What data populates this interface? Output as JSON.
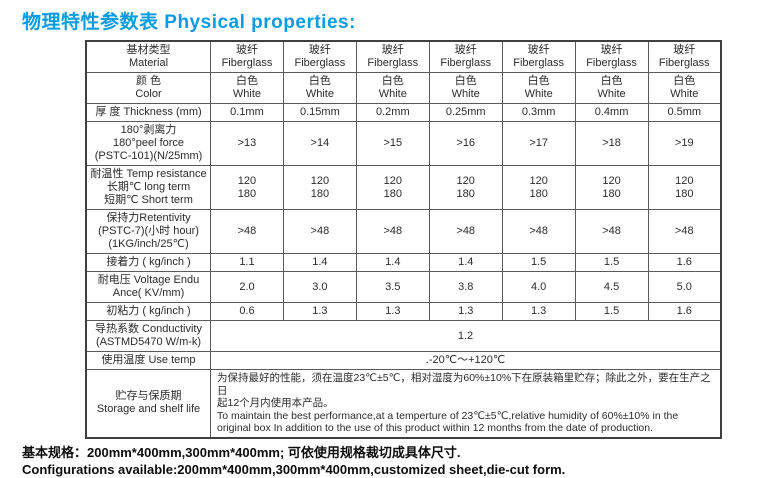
{
  "title": "物理特性参数表 Physical properties:",
  "table": {
    "columns": 7,
    "rows": [
      {
        "id": "material",
        "label": [
          "基材类型",
          "Material"
        ],
        "cells": [
          [
            "玻纤",
            "Fiberglass"
          ],
          [
            "玻纤",
            "Fiberglass"
          ],
          [
            "玻纤",
            "Fiberglass"
          ],
          [
            "玻纤",
            "Fiberglass"
          ],
          [
            "玻纤",
            "Fiberglass"
          ],
          [
            "玻纤",
            "Fiberglass"
          ],
          [
            "玻纤",
            "Fiberglass"
          ]
        ]
      },
      {
        "id": "color",
        "label": [
          "颜 色",
          "Color"
        ],
        "cells": [
          [
            "白色",
            "White"
          ],
          [
            "白色",
            "White"
          ],
          [
            "白色",
            "White"
          ],
          [
            "白色",
            "White"
          ],
          [
            "白色",
            "White"
          ],
          [
            "白色",
            "White"
          ],
          [
            "白色",
            "White"
          ]
        ]
      },
      {
        "id": "thickness",
        "label": [
          "厚 度  Thickness (mm)"
        ],
        "cells": [
          [
            "0.1mm"
          ],
          [
            "0.15mm"
          ],
          [
            "0.2mm"
          ],
          [
            "0.25mm"
          ],
          [
            "0.3mm"
          ],
          [
            "0.4mm"
          ],
          [
            "0.5mm"
          ]
        ]
      },
      {
        "id": "peel-force",
        "label": [
          "180°剥离力",
          "180°peel force",
          "(PSTC-101)(N/25mm)"
        ],
        "cells": [
          [
            ">13"
          ],
          [
            ">14"
          ],
          [
            ">15"
          ],
          [
            ">16"
          ],
          [
            ">17"
          ],
          [
            ">18"
          ],
          [
            ">19"
          ]
        ]
      },
      {
        "id": "temp-resistance",
        "label": [
          "耐温性 Temp resistance",
          "长期℃ long term",
          "短期℃ Short term"
        ],
        "cells": [
          [
            "120",
            "180"
          ],
          [
            "120",
            "180"
          ],
          [
            "120",
            "180"
          ],
          [
            "120",
            "180"
          ],
          [
            "120",
            "180"
          ],
          [
            "120",
            "180"
          ],
          [
            "120",
            "180"
          ]
        ]
      },
      {
        "id": "retentivity",
        "label": [
          "保持力Retentivity",
          "(PSTC-7)(小时 hour)",
          "(1KG/inch/25℃)"
        ],
        "cells": [
          [
            ">48"
          ],
          [
            ">48"
          ],
          [
            ">48"
          ],
          [
            ">48"
          ],
          [
            ">48"
          ],
          [
            ">48"
          ],
          [
            ">48"
          ]
        ]
      },
      {
        "id": "adhesion",
        "label": [
          "接着力 ( kg/inch )"
        ],
        "cells": [
          [
            "1.1"
          ],
          [
            "1.4"
          ],
          [
            "1.4"
          ],
          [
            "1.4"
          ],
          [
            "1.5"
          ],
          [
            "1.5"
          ],
          [
            "1.6"
          ]
        ]
      },
      {
        "id": "voltage",
        "label": [
          "耐电压 Voltage Endu Ance( KV/mm)"
        ],
        "cells": [
          [
            "2.0"
          ],
          [
            "3.0"
          ],
          [
            "3.5"
          ],
          [
            "3.8"
          ],
          [
            "4.0"
          ],
          [
            "4.5"
          ],
          [
            "5.0"
          ]
        ]
      },
      {
        "id": "initial-tack",
        "label": [
          "初粘力 ( kg/inch )"
        ],
        "cells": [
          [
            "0.6"
          ],
          [
            "1.3"
          ],
          [
            "1.3"
          ],
          [
            "1.3"
          ],
          [
            "1.3"
          ],
          [
            "1.5"
          ],
          [
            "1.6"
          ]
        ]
      },
      {
        "id": "conductivity",
        "label": [
          "导热系数 Conductivity",
          "(ASTMD5470 W/m-k)"
        ],
        "merged": true,
        "cells": [
          [
            "1.2"
          ]
        ]
      },
      {
        "id": "use-temp",
        "label": [
          "使用温度 Use temp"
        ],
        "merged": true,
        "cells": [
          [
            ".-20℃～+120℃"
          ]
        ]
      },
      {
        "id": "storage",
        "label": [
          "贮存与保质期",
          "Storage and shelf life"
        ],
        "merged": true,
        "align": "left",
        "cells": [
          [
            "为保持最好的性能，须在温度23℃±5℃，相对湿度为60%±10%下在原装箱里贮存；除此之外，要在生产之日",
            "起12个月内使用本产品。",
            "To maintain the best performance,at a temperture of 23℃±5℃,relative humidity of 60%±10% in the",
            "original box In addition to the use of this product within 12 months from the date of production."
          ]
        ]
      }
    ]
  },
  "footer": {
    "line1": "基本规格：200mm*400mm,300mm*400mm; 可依使用规格裁切成具体尺寸.",
    "line2": "Configurations available:200mm*400mm,300mm*400mm,customized sheet,die-cut form."
  },
  "colors": {
    "title_accent": "#089ce2",
    "table_border": "#5a5a5a",
    "text": "#2b2b2b"
  }
}
